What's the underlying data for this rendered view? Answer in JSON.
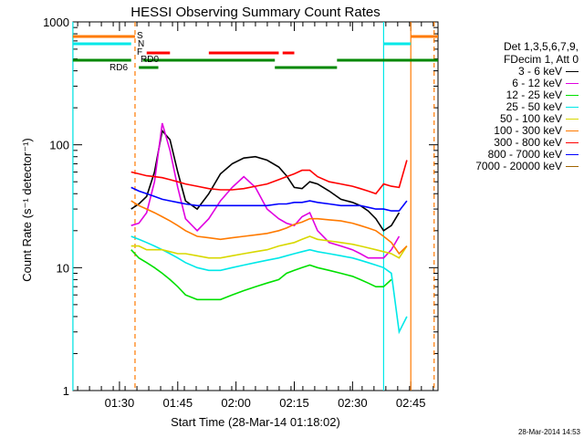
{
  "chart_data": {
    "type": "line",
    "title": "HESSI Observing Summary Count Rates",
    "xlabel": "Start Time (28-Mar-14 01:18:02)",
    "ylabel": "Count Rate (s⁻¹ detector⁻¹)",
    "yscale": "log",
    "ylim": [
      1,
      1000
    ],
    "y_ticks": [
      {
        "value": 1,
        "label": "1"
      },
      {
        "value": 10,
        "label": "10"
      },
      {
        "value": 100,
        "label": "100"
      },
      {
        "value": 1000,
        "label": "1000"
      }
    ],
    "x_ticks": [
      "01:30",
      "01:45",
      "02:00",
      "02:15",
      "02:30",
      "02:45"
    ],
    "legend_header": [
      "Det 1,3,5,6,7,9,",
      "FDecim 1, Att 0"
    ],
    "series": [
      {
        "name": "3 - 6 keV",
        "color": "#000000",
        "x": [
          "01:33",
          "01:35",
          "01:37",
          "01:39",
          "01:41",
          "01:43",
          "01:45",
          "01:47",
          "01:50",
          "01:53",
          "01:56",
          "01:59",
          "02:02",
          "02:05",
          "02:08",
          "02:11",
          "02:13",
          "02:15",
          "02:17",
          "02:19",
          "02:21",
          "02:24",
          "02:27",
          "02:30",
          "02:32",
          "02:34",
          "02:36",
          "02:38",
          "02:40",
          "02:42"
        ],
        "values": [
          30,
          33,
          38,
          60,
          130,
          110,
          60,
          35,
          30,
          40,
          58,
          70,
          78,
          80,
          75,
          66,
          56,
          45,
          44,
          50,
          48,
          42,
          36,
          34,
          32,
          29,
          25,
          20,
          22,
          28
        ]
      },
      {
        "name": "6 - 12 keV",
        "color": "#e000e0",
        "x": [
          "01:33",
          "01:35",
          "01:37",
          "01:39",
          "01:41",
          "01:43",
          "01:45",
          "01:47",
          "01:50",
          "01:53",
          "01:56",
          "01:59",
          "02:02",
          "02:05",
          "02:08",
          "02:11",
          "02:13",
          "02:15",
          "02:17",
          "02:19",
          "02:21",
          "02:24",
          "02:27",
          "02:30",
          "02:32",
          "02:34",
          "02:36",
          "02:38",
          "02:40",
          "02:42"
        ],
        "values": [
          22,
          23,
          28,
          50,
          150,
          90,
          45,
          25,
          20,
          25,
          35,
          45,
          55,
          45,
          30,
          25,
          23,
          22,
          26,
          28,
          20,
          16,
          15,
          14,
          13,
          12,
          12,
          12,
          14,
          18
        ]
      },
      {
        "name": "12 - 25 keV",
        "color": "#00e000",
        "x": [
          "01:33",
          "01:35",
          "01:37",
          "01:39",
          "01:41",
          "01:43",
          "01:45",
          "01:47",
          "01:50",
          "01:53",
          "01:56",
          "01:59",
          "02:02",
          "02:05",
          "02:08",
          "02:11",
          "02:13",
          "02:15",
          "02:17",
          "02:19",
          "02:21",
          "02:24",
          "02:27",
          "02:30",
          "02:32",
          "02:34",
          "02:36",
          "02:38",
          "02:40"
        ],
        "values": [
          14,
          12,
          11,
          10,
          9,
          8,
          7,
          6,
          5.5,
          5.5,
          5.5,
          6,
          6.5,
          7,
          7.5,
          8,
          9,
          9.5,
          10,
          10.5,
          10,
          9.5,
          9,
          8.5,
          8,
          7.5,
          7,
          7,
          8
        ]
      },
      {
        "name": "25 - 50 keV",
        "color": "#00e8e8",
        "x": [
          "01:33",
          "01:35",
          "01:37",
          "01:39",
          "01:41",
          "01:43",
          "01:45",
          "01:47",
          "01:50",
          "01:53",
          "01:56",
          "01:59",
          "02:02",
          "02:05",
          "02:08",
          "02:11",
          "02:13",
          "02:15",
          "02:17",
          "02:19",
          "02:21",
          "02:24",
          "02:27",
          "02:30",
          "02:32",
          "02:34",
          "02:36",
          "02:38",
          "02:40",
          "02:42",
          "02:44"
        ],
        "values": [
          18,
          17,
          16,
          15,
          14,
          13,
          12,
          11,
          10,
          9.5,
          9.5,
          10,
          10.5,
          11,
          11.5,
          12,
          12.5,
          13,
          13.5,
          14,
          13.5,
          13,
          12.5,
          12,
          11.5,
          11,
          10.5,
          10,
          9,
          3,
          4
        ]
      },
      {
        "name": "50 - 100 keV",
        "color": "#d8d800",
        "x": [
          "01:33",
          "01:35",
          "01:37",
          "01:39",
          "01:41",
          "01:43",
          "01:45",
          "01:47",
          "01:50",
          "01:53",
          "01:56",
          "01:59",
          "02:02",
          "02:05",
          "02:08",
          "02:11",
          "02:13",
          "02:15",
          "02:17",
          "02:19",
          "02:21",
          "02:24",
          "02:27",
          "02:30",
          "02:32",
          "02:34",
          "02:36",
          "02:38",
          "02:40",
          "02:42",
          "02:44"
        ],
        "values": [
          15,
          15,
          14,
          14,
          14,
          13.5,
          13,
          13,
          12.5,
          12,
          12,
          12.5,
          13,
          13.5,
          14,
          15,
          15.5,
          16,
          17,
          18,
          17,
          16.5,
          16,
          15.5,
          15,
          14.5,
          14,
          13.5,
          13,
          12,
          15
        ]
      },
      {
        "name": "100 - 300 keV",
        "color": "#ff7a00",
        "x": [
          "01:33",
          "01:35",
          "01:37",
          "01:39",
          "01:41",
          "01:43",
          "01:45",
          "01:47",
          "01:50",
          "01:53",
          "01:56",
          "01:59",
          "02:02",
          "02:05",
          "02:08",
          "02:11",
          "02:13",
          "02:15",
          "02:17",
          "02:19",
          "02:21",
          "02:24",
          "02:27",
          "02:30",
          "02:32",
          "02:34",
          "02:36",
          "02:38",
          "02:40",
          "02:42",
          "02:44"
        ],
        "values": [
          35,
          32,
          30,
          28,
          26,
          24,
          22,
          20,
          18,
          17.5,
          17,
          17.5,
          18,
          18.5,
          19,
          20,
          21,
          22.5,
          23.5,
          25,
          25,
          24.5,
          24,
          23,
          22,
          21,
          20,
          18,
          16,
          13,
          15
        ]
      },
      {
        "name": "300 - 800 keV",
        "color": "#ff0000",
        "x": [
          "01:33",
          "01:35",
          "01:37",
          "01:39",
          "01:41",
          "01:43",
          "01:45",
          "01:47",
          "01:50",
          "01:53",
          "01:56",
          "01:59",
          "02:02",
          "02:05",
          "02:08",
          "02:11",
          "02:13",
          "02:15",
          "02:17",
          "02:19",
          "02:21",
          "02:24",
          "02:27",
          "02:30",
          "02:32",
          "02:34",
          "02:36",
          "02:38",
          "02:40",
          "02:42",
          "02:44"
        ],
        "values": [
          60,
          58,
          56,
          55,
          54,
          52,
          50,
          48,
          46,
          44,
          43,
          43,
          44,
          46,
          48,
          52,
          55,
          58,
          62,
          62,
          55,
          50,
          48,
          46,
          44,
          42,
          40,
          48,
          46,
          45,
          75
        ]
      },
      {
        "name": "800 - 7000 keV",
        "color": "#0000ff",
        "x": [
          "01:33",
          "01:35",
          "01:37",
          "01:39",
          "01:41",
          "01:43",
          "01:45",
          "01:47",
          "01:50",
          "01:53",
          "01:56",
          "01:59",
          "02:02",
          "02:05",
          "02:08",
          "02:11",
          "02:13",
          "02:15",
          "02:17",
          "02:19",
          "02:21",
          "02:24",
          "02:27",
          "02:30",
          "02:32",
          "02:34",
          "02:36",
          "02:38",
          "02:40",
          "02:42",
          "02:44"
        ],
        "values": [
          45,
          42,
          40,
          38,
          36,
          35,
          34,
          33,
          32,
          32,
          32,
          32,
          32,
          32,
          32,
          33,
          33,
          34,
          34,
          35,
          34,
          33,
          32,
          32,
          32,
          31,
          30,
          30,
          29,
          29,
          35
        ]
      },
      {
        "name": "7000 - 20000 keV",
        "color": "#a06400",
        "x": [],
        "values": []
      }
    ],
    "state_bars": [
      {
        "label": "S",
        "color": "#ff7a00",
        "segments": [
          [
            "01:18",
            "01:34"
          ],
          [
            "02:45",
            "02:52"
          ]
        ]
      },
      {
        "label": "N",
        "color": "#00e8e8",
        "segments": [
          [
            "01:18",
            "01:33"
          ],
          [
            "02:38",
            "02:45"
          ]
        ]
      },
      {
        "label": "F",
        "color": "#ff0000",
        "segments": [
          [
            "01:37",
            "01:43"
          ],
          [
            "01:53",
            "02:11"
          ],
          [
            "02:12",
            "02:15"
          ]
        ]
      },
      {
        "label": "RD0",
        "color": "#008800",
        "segments": [
          [
            "01:18",
            "01:33"
          ],
          [
            "01:36",
            "02:10"
          ],
          [
            "02:26",
            "02:52"
          ]
        ]
      },
      {
        "label": "RD6",
        "color": "#008800",
        "segments": [
          [
            "01:35",
            "01:40"
          ],
          [
            "02:10",
            "02:26"
          ]
        ]
      }
    ],
    "vertical_markers": [
      {
        "x": "01:18",
        "color": "#00e8e8",
        "style": "solid"
      },
      {
        "x": "01:34",
        "color": "#ff7a00",
        "style": "dashed"
      },
      {
        "x": "02:38",
        "color": "#00e8e8",
        "style": "solid"
      },
      {
        "x": "02:45",
        "color": "#ff7a00",
        "style": "solid"
      },
      {
        "x": "02:51",
        "color": "#ff7a00",
        "style": "dashed"
      }
    ]
  },
  "footer": {
    "date": "28-Mar-2014 14:53"
  }
}
